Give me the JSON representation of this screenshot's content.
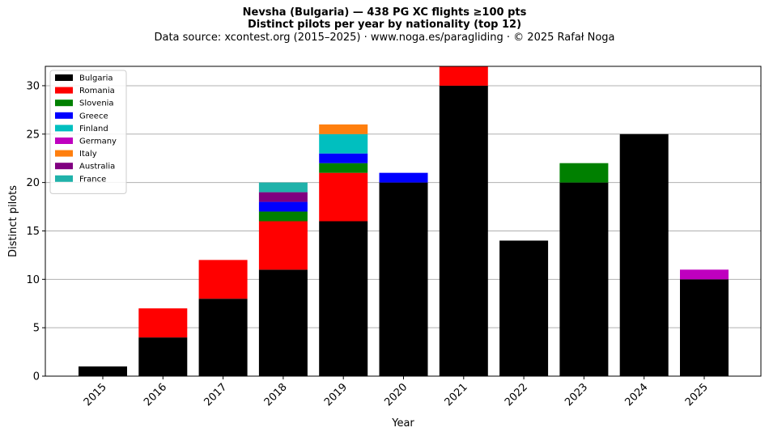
{
  "title": "Nevsha (Bulgaria)  —  438 PG XC flights ≥100 pts",
  "subtitle": "Distinct pilots per year by nationality (top 12)",
  "source": "Data source: xcontest.org (2015–2025)  ·  www.noga.es/paragliding  ·  © 2025 Rafał Noga",
  "chart_data": {
    "type": "bar",
    "stacked": true,
    "categories": [
      "2015",
      "2016",
      "2017",
      "2018",
      "2019",
      "2020",
      "2021",
      "2022",
      "2023",
      "2024",
      "2025"
    ],
    "series": [
      {
        "name": "Bulgaria",
        "color": "#000000",
        "values": [
          1,
          4,
          8,
          11,
          16,
          20,
          30,
          14,
          20,
          25,
          10
        ]
      },
      {
        "name": "Romania",
        "color": "#ff0000",
        "values": [
          0,
          3,
          4,
          5,
          5,
          0,
          2,
          0,
          0,
          0,
          0
        ]
      },
      {
        "name": "Slovenia",
        "color": "#008000",
        "values": [
          0,
          0,
          0,
          1,
          1,
          0,
          0,
          0,
          2,
          0,
          0
        ]
      },
      {
        "name": "Greece",
        "color": "#0000ff",
        "values": [
          0,
          0,
          0,
          1,
          1,
          1,
          0,
          0,
          0,
          0,
          0
        ]
      },
      {
        "name": "Finland",
        "color": "#00bfbf",
        "values": [
          0,
          0,
          0,
          0,
          2,
          0,
          0,
          0,
          0,
          0,
          0
        ]
      },
      {
        "name": "Germany",
        "color": "#bf00bf",
        "values": [
          0,
          0,
          0,
          0,
          0,
          0,
          0,
          0,
          0,
          0,
          1
        ]
      },
      {
        "name": "Italy",
        "color": "#ff7f0e",
        "values": [
          0,
          0,
          0,
          0,
          1,
          0,
          0,
          0,
          0,
          0,
          0
        ]
      },
      {
        "name": "Australia",
        "color": "#800080",
        "values": [
          0,
          0,
          0,
          1,
          0,
          0,
          0,
          0,
          0,
          0,
          0
        ]
      },
      {
        "name": "France",
        "color": "#20b2aa",
        "values": [
          0,
          0,
          0,
          1,
          0,
          0,
          0,
          0,
          0,
          0,
          0
        ]
      }
    ],
    "xlabel": "Year",
    "ylabel": "Distinct pilots",
    "ylim": [
      0,
      32
    ],
    "yticks": [
      0,
      5,
      10,
      15,
      20,
      25,
      30
    ],
    "grid": "y",
    "legend_position": "top-left"
  }
}
